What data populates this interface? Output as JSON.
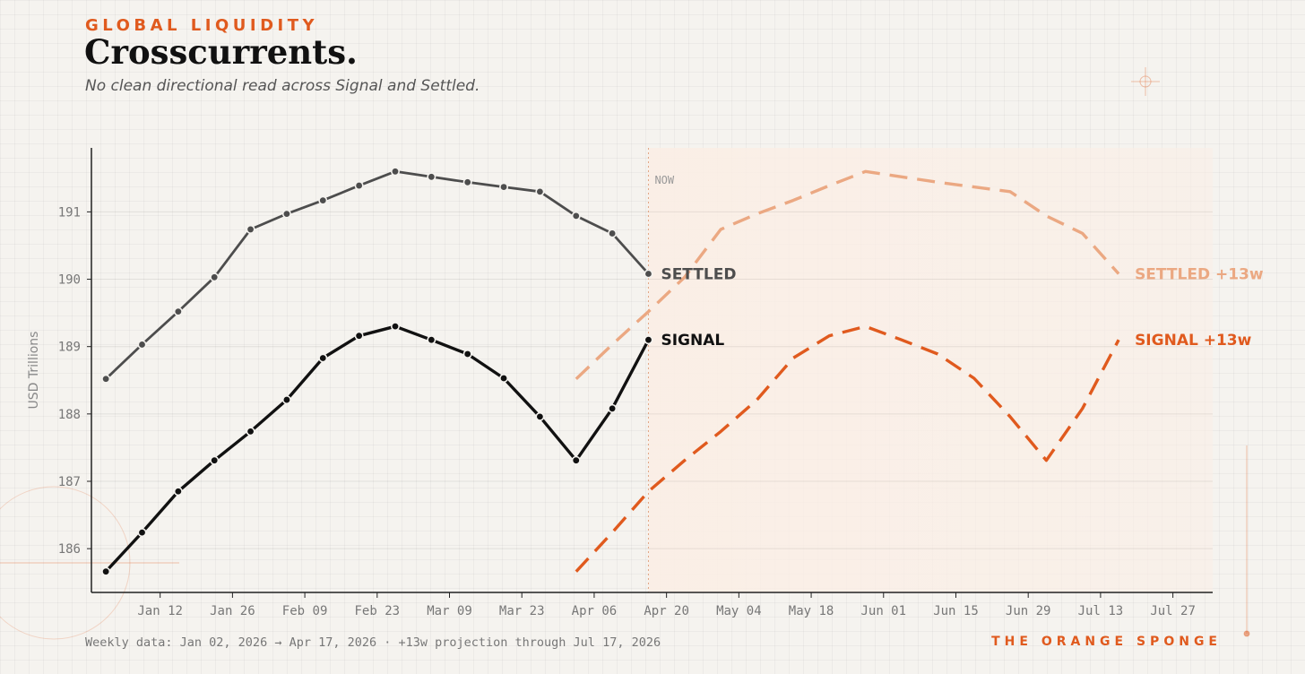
{
  "header": {
    "kicker": "GLOBAL LIQUIDITY",
    "title": "Crosscurrents.",
    "subtitle": "No clean directional read across Signal and Settled."
  },
  "footer": {
    "note": "Weekly data: Jan 02, 2026  →  Apr 17, 2026   ·   +13w projection through Jul 17, 2026",
    "brand": "THE ORANGE SPONGE"
  },
  "colors": {
    "signal": "#111111",
    "settled": "#4d4d4d",
    "signal_projection": "#e05a1e",
    "settled_projection": "#eba882",
    "projection_shade": "#fbeee5",
    "accent": "#e05a1e"
  },
  "chart_data": {
    "type": "line",
    "ylabel": "USD Trillions",
    "ylim": [
      185.35,
      191.95
    ],
    "y_ticks": [
      186,
      187,
      188,
      189,
      190,
      191
    ],
    "x_start": "Jan 02, 2026",
    "x_ticks": [
      {
        "week": 1.5,
        "label": "Jan 12"
      },
      {
        "week": 3.5,
        "label": "Jan 26"
      },
      {
        "week": 5.5,
        "label": "Feb 09"
      },
      {
        "week": 7.5,
        "label": "Feb 23"
      },
      {
        "week": 9.5,
        "label": "Mar 09"
      },
      {
        "week": 11.5,
        "label": "Mar 23"
      },
      {
        "week": 13.5,
        "label": "Apr 06"
      },
      {
        "week": 15.5,
        "label": "Apr 20"
      },
      {
        "week": 17.5,
        "label": "May 04"
      },
      {
        "week": 19.5,
        "label": "May 18"
      },
      {
        "week": 21.5,
        "label": "Jun 01"
      },
      {
        "week": 23.5,
        "label": "Jun 15"
      },
      {
        "week": 25.5,
        "label": "Jun 29"
      },
      {
        "week": 27.5,
        "label": "Jul 13"
      },
      {
        "week": 29.5,
        "label": "Jul 27"
      }
    ],
    "xlim": [
      -0.4,
      30.6
    ],
    "now_week": 15,
    "now_label": "NOW",
    "series": [
      {
        "name": "SETTLED",
        "label": "SETTLED",
        "style": "solid",
        "color": "#4d4d4d",
        "start_week": 0,
        "values": [
          188.52,
          189.03,
          189.52,
          190.03,
          190.74,
          190.97,
          191.17,
          191.39,
          191.6,
          191.52,
          191.44,
          191.37,
          191.3,
          190.94,
          190.68,
          190.08
        ]
      },
      {
        "name": "SIGNAL",
        "label": "SIGNAL",
        "style": "solid",
        "color": "#111111",
        "start_week": 0,
        "values": [
          185.66,
          186.24,
          186.85,
          187.31,
          187.74,
          188.21,
          188.83,
          189.16,
          189.3,
          189.1,
          188.89,
          188.53,
          187.96,
          187.31,
          188.08,
          189.1
        ]
      },
      {
        "name": "SETTLED +13w",
        "label": "SETTLED +13w",
        "style": "dashed",
        "color": "#eba882",
        "start_week": 13,
        "values": [
          188.52,
          189.03,
          189.52,
          190.03,
          190.74,
          190.97,
          191.17,
          191.39,
          191.6,
          191.52,
          191.44,
          191.37,
          191.3,
          190.94,
          190.68,
          190.08
        ]
      },
      {
        "name": "SIGNAL +13w",
        "label": "SIGNAL +13w",
        "style": "dashed",
        "color": "#e05a1e",
        "start_week": 13,
        "values": [
          185.66,
          186.24,
          186.85,
          187.31,
          187.74,
          188.21,
          188.83,
          189.16,
          189.3,
          189.1,
          188.89,
          188.53,
          187.96,
          187.31,
          188.08,
          189.1
        ]
      }
    ]
  }
}
